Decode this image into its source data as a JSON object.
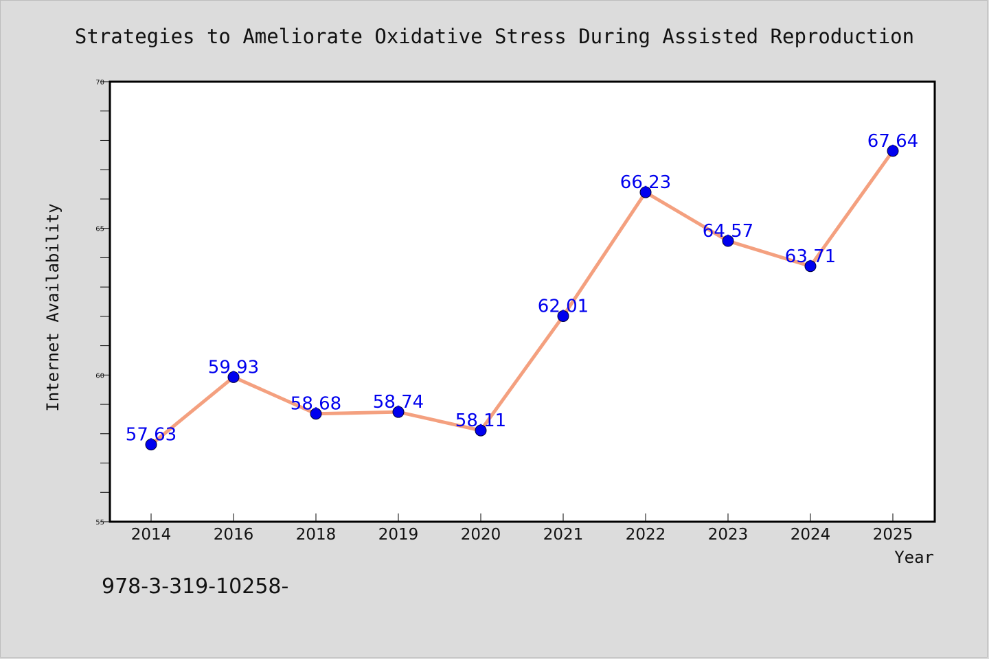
{
  "chart_data": {
    "type": "line",
    "title": "Strategies to Ameliorate Oxidative Stress During Assisted Reproduction",
    "xlabel": "Year",
    "ylabel": "Internet Availability",
    "categories": [
      "2014",
      "2016",
      "2018",
      "2019",
      "2020",
      "2021",
      "2022",
      "2023",
      "2024",
      "2025"
    ],
    "values": [
      57.63,
      59.93,
      58.68,
      58.74,
      58.11,
      62.01,
      66.23,
      64.57,
      63.71,
      67.64
    ],
    "data_labels": [
      "57.63",
      "59.93",
      "58.68",
      "58.74",
      "58.11",
      "62.01",
      "66.23",
      "64.57",
      "63.71",
      "67.64"
    ],
    "ylim": [
      55,
      70
    ],
    "yticks": [
      55,
      60,
      65,
      70
    ],
    "grid": false,
    "legend": "none",
    "line_color": "#f4a07f",
    "marker_color": "#0000ee",
    "label_color": "#0000ee"
  },
  "footer": {
    "text": "978-3-319-10258-"
  }
}
